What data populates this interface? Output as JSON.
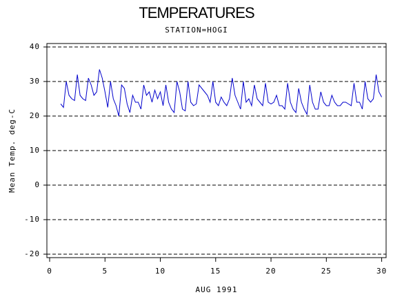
{
  "chart_data": {
    "type": "line",
    "title": "TEMPERATURES",
    "subtitle": "STATION=HOGI",
    "x_label": "AUG 1991",
    "y_label": "Mean Temp. deg-C",
    "xlim": [
      -0.25,
      30.4
    ],
    "xticks": [
      0,
      5,
      10,
      15,
      20,
      25,
      30
    ],
    "ylim": [
      -21,
      41
    ],
    "yticks": [
      -20,
      -10,
      0,
      10,
      20,
      30,
      40
    ],
    "grid": true,
    "x": [
      1.0,
      1.25,
      1.5,
      1.75,
      2.0,
      2.25,
      2.5,
      2.75,
      3.0,
      3.25,
      3.5,
      3.75,
      4.0,
      4.25,
      4.5,
      4.75,
      5.0,
      5.25,
      5.5,
      5.75,
      6.0,
      6.25,
      6.5,
      6.75,
      7.0,
      7.25,
      7.5,
      7.75,
      8.0,
      8.25,
      8.5,
      8.75,
      9.0,
      9.25,
      9.5,
      9.75,
      10.0,
      10.25,
      10.5,
      10.75,
      11.0,
      11.25,
      11.5,
      11.75,
      12.0,
      12.25,
      12.5,
      12.75,
      13.0,
      13.25,
      13.5,
      13.75,
      14.0,
      14.25,
      14.5,
      14.75,
      15.0,
      15.25,
      15.5,
      15.75,
      16.0,
      16.25,
      16.5,
      16.75,
      17.0,
      17.25,
      17.5,
      17.75,
      18.0,
      18.25,
      18.5,
      18.75,
      19.0,
      19.25,
      19.5,
      19.75,
      20.0,
      20.25,
      20.5,
      20.75,
      21.0,
      21.25,
      21.5,
      21.75,
      22.0,
      22.25,
      22.5,
      22.75,
      23.0,
      23.25,
      23.5,
      23.75,
      24.0,
      24.25,
      24.5,
      24.75,
      25.0,
      25.25,
      25.5,
      25.75,
      26.0,
      26.25,
      26.5,
      26.75,
      27.0,
      27.25,
      27.5,
      27.75,
      28.0,
      28.25,
      28.5,
      28.75,
      29.0,
      29.25,
      29.5,
      29.75,
      30.0
    ],
    "series": [
      {
        "color": "#0000cc",
        "values": [
          23.5,
          22.5,
          30,
          26,
          25,
          24.5,
          32,
          26,
          25,
          24.5,
          31,
          29,
          26,
          27,
          33.5,
          31,
          27,
          22.5,
          30,
          25,
          23,
          20,
          29,
          28,
          23.5,
          21,
          26,
          24,
          24,
          22,
          29,
          26,
          27,
          24,
          27.5,
          25,
          27,
          23,
          29,
          24,
          22,
          21,
          30,
          27,
          22,
          21.5,
          30,
          24,
          23,
          23.5,
          29,
          28,
          27,
          26,
          24,
          30,
          24,
          23,
          25.5,
          24,
          23,
          25,
          31,
          26,
          24,
          22,
          30,
          24,
          25,
          23,
          29,
          25,
          24,
          23,
          29.5,
          24,
          23.5,
          24,
          26,
          23,
          23,
          22,
          29.5,
          24,
          22,
          21,
          28,
          24,
          22,
          20.5,
          29,
          24,
          22,
          22,
          27,
          24,
          23,
          23,
          26,
          24,
          23,
          23,
          24,
          24,
          23.5,
          23,
          29.5,
          24,
          24,
          22,
          30,
          25,
          24,
          25,
          32,
          27,
          25.5
        ]
      }
    ]
  }
}
